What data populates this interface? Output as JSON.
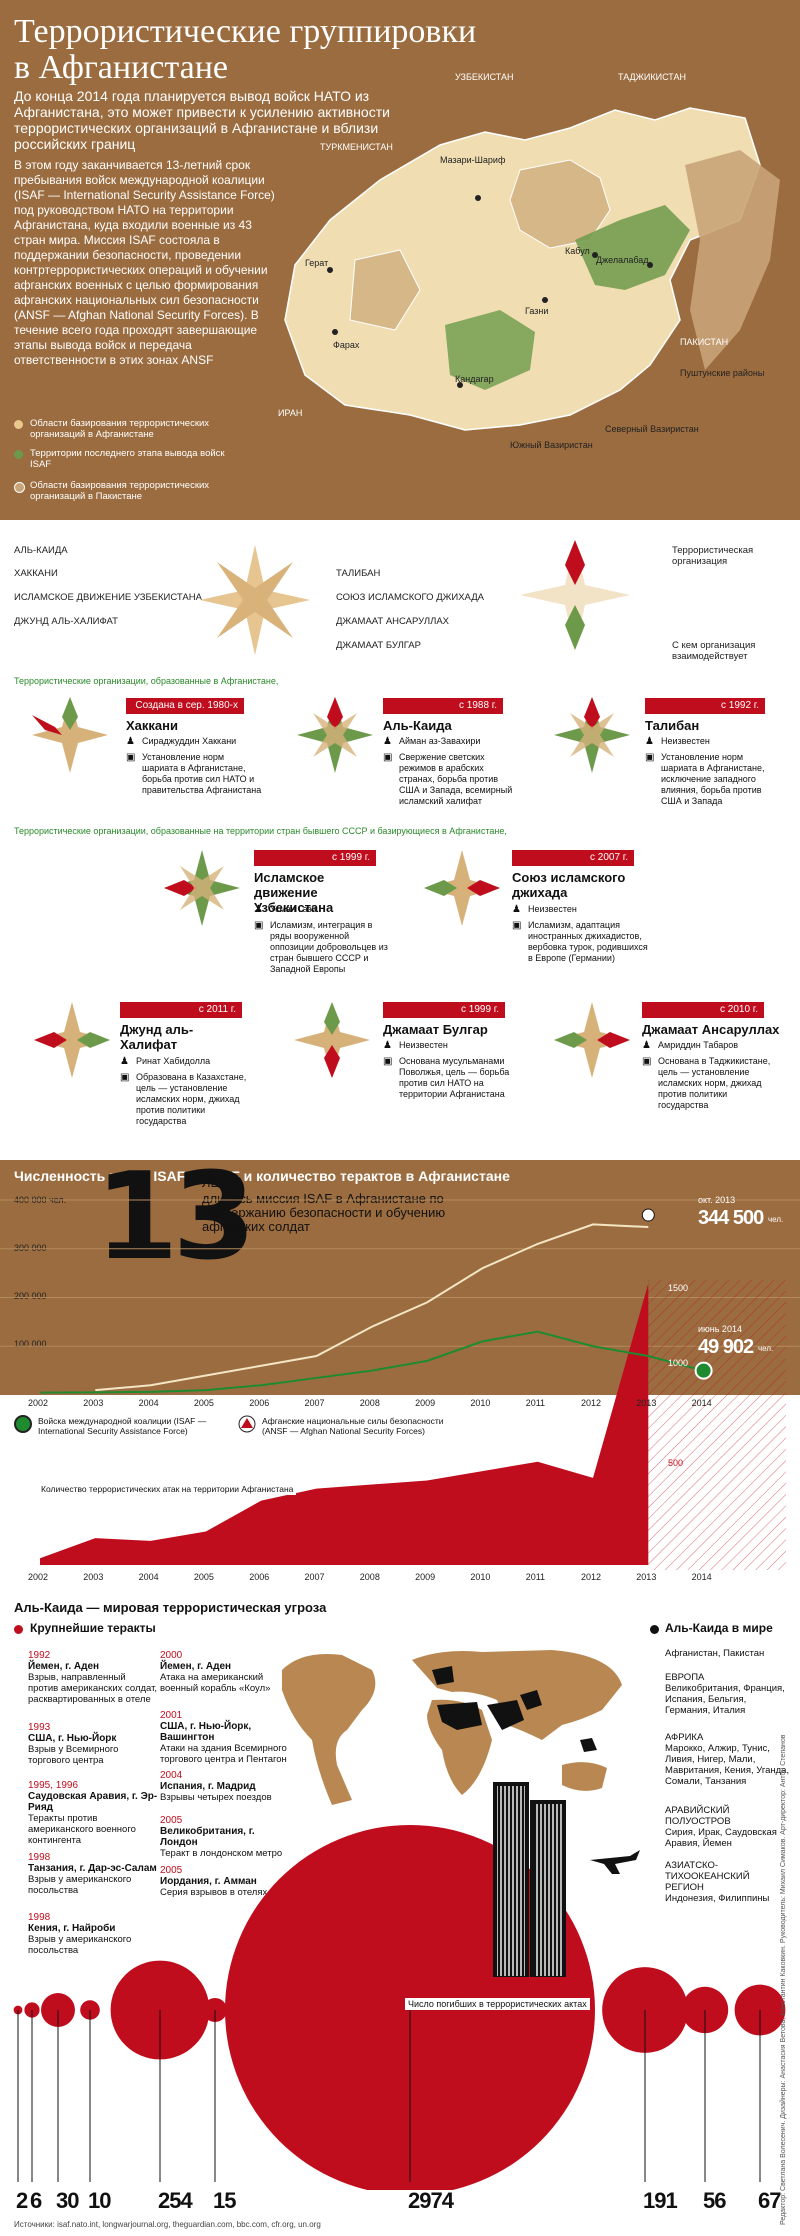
{
  "header": {
    "title": "Террористические группировки в Афганистане",
    "intro": "До конца 2014 года планируется вывод войск НАТО из Афганистана, это может привести к усилению активности террористических организаций в Афганистане и вблизи российских границ",
    "body": "В этом году заканчивается 13-летний срок пребывания войск международной коалиции (ISAF — International Security Assistance Force) под руководством НАТО на территории Афганистана, куда входили военные из 43 стран мира. Миссия ISAF состояла в поддержании безопасности, проведении контртеррористических операций и обучении афганских военных с целью формирования афганских национальных сил безопасности (ANSF — Afghan National Security Forces). В течение всего года проходят завершающие этапы вывода войск и передача ответственности в этих зонах ANSF"
  },
  "map_legend": [
    {
      "text": "Области базирования террористических организаций в Афганистане",
      "color": "#e8c98c"
    },
    {
      "text": "Территории последнего этапа вывода войск ISAF",
      "color": "#6d9a4a"
    },
    {
      "text": "Области базирования террористических организаций в Пакистане",
      "color": "#c9a478"
    }
  ],
  "map_labels": {
    "uzbekistan": "УЗБЕКИСТАН",
    "tajikistan": "ТАДЖИКИСТАН",
    "turkmenistan": "ТУРКМЕНИСТАН",
    "iran": "ИРАН",
    "pakistan": "ПАКИСТАН",
    "mazar": "Мазари-Шариф",
    "herat": "Герат",
    "kabul": "Кабул",
    "jalalabad": "Джелалабад",
    "ghazni": "Газни",
    "farah": "Фарах",
    "kandahar": "Кандагар",
    "pashtun": "Пуштунские районы",
    "n_waziristan": "Северный Вазиристан",
    "s_waziristan": "Южный Вазиристан"
  },
  "symbols": {
    "left": [
      "АЛЬ-КАИДА",
      "ХАККАНИ",
      "ИСЛАМСКОЕ ДВИЖЕНИЕ УЗБЕКИСТАНА",
      "ДЖУНД АЛЬ-ХАЛИФАТ"
    ],
    "right": [
      "ТАЛИБАН",
      "СОЮЗ ИСЛАМСКОГО ДЖИХАДА",
      "ДЖАМААТ АНСАРУЛЛАХ",
      "ДЖАМААТ БУЛГАР"
    ],
    "key_org": "Террористическая организация",
    "key_partner": "С кем организация взаимодействует"
  },
  "section1": "Террористические организации, образованные в Афганистане,",
  "section2": "Террористические организации, образованные на территории стран бывшего СССР и базирующиеся в Афганистане,",
  "orgs": [
    {
      "badge": "Создана в сер. 1980-х",
      "name": "Хаккани",
      "leader": "Сираджуддин Хаккани",
      "goal": "Установление норм шариата в Афганистане, борьба против сил НАТО и правительства Афганистана"
    },
    {
      "badge": "с 1988 г.",
      "name": "Аль-Каида",
      "leader": "Айман аз-Завахири",
      "goal": "Свержение светских режимов в арабских странах, борьба против США и Запада, всемирный исламский халифат"
    },
    {
      "badge": "с 1992 г.",
      "name": "Талибан",
      "leader": "Неизвестен",
      "goal": "Установление норм шариата в Афганистане, исключение западного влияния, борьба против США и Запада"
    },
    {
      "badge": "с 1999 г.",
      "name": "Исламское движение Узбекистана",
      "leader": "Усман Гази",
      "goal": "Исламизм, интеграция в ряды вооруженной оппозиции добровольцев из стран бывшего СССР и Западной Европы"
    },
    {
      "badge": "с 2007 г.",
      "name": "Союз исламского джихада",
      "leader": "Неизвестен",
      "goal": "Исламизм, адаптация иностранных джихадистов, вербовка турок, родившихся в Европе (Германии)"
    },
    {
      "badge": "с 2011 г.",
      "name": "Джунд аль-Халифат",
      "leader": "Ринат Хабидолла",
      "goal": "Образована в Казахстане, цель — установление исламских норм, джихад против политики государства"
    },
    {
      "badge": "с 1999 г.",
      "name": "Джамаат Булгар",
      "leader": "Неизвестен",
      "goal": "Основана мусульманами Поволжья, цель — борьба против сил НАТО на территории Афганистана"
    },
    {
      "badge": "с 2010 г.",
      "name": "Джамаат Ансаруллах",
      "leader": "Амриддин Табаров",
      "goal": "Основана в Таджикистане, цель — установление исламских норм, джихад против политики государства"
    }
  ],
  "troops": {
    "title": "Численность войск ISAF и ANSF и количество терактов в Афганистане",
    "big_number": "13",
    "big_text1": "ЛЕТ",
    "big_text2": "длилась миссия ISAF в Афганистане по поддержанию безопасности и обучению афганских солдат",
    "ansf_label": "окт. 2013",
    "ansf_value": "344 500",
    "unit1": "чел.",
    "isaf_label": "июнь 2014",
    "isaf_value": "49 902",
    "unit2": "чел.",
    "yticks": [
      "400 000 чел.",
      "300 000",
      "200 000",
      "100 000"
    ],
    "legend_isaf": "Войска международной коалиции (ISAF — International Security Assistance Force)",
    "legend_ansf": "Афганские национальные силы безопасности (ANSF — Afghan National Security Forces)",
    "attacks_label": "Количество террористических атак на территории Афганистана",
    "attack_ticks": [
      "1500",
      "1000",
      "500"
    ]
  },
  "chart_data": [
    {
      "type": "line",
      "x": [
        "2002",
        "2003",
        "2004",
        "2005",
        "2006",
        "2007",
        "2008",
        "2009",
        "2010",
        "2011",
        "2012",
        "2013",
        "2014"
      ],
      "series": [
        {
          "name": "ANSF",
          "values": [
            null,
            10000,
            20000,
            40000,
            60000,
            80000,
            140000,
            190000,
            260000,
            310000,
            350000,
            344500,
            null
          ]
        },
        {
          "name": "ISAF",
          "values": [
            5000,
            5500,
            6500,
            10000,
            20000,
            35000,
            50000,
            70000,
            110000,
            130000,
            100000,
            80000,
            49902
          ]
        }
      ],
      "ylim": [
        0,
        400000
      ]
    },
    {
      "type": "area",
      "x": [
        "2002",
        "2003",
        "2004",
        "2005",
        "2006",
        "2007",
        "2008",
        "2009",
        "2010",
        "2011",
        "2012",
        "2013"
      ],
      "series": [
        {
          "name": "Количество террористических атак на территории Афганистана",
          "values": [
            50,
            200,
            180,
            250,
            480,
            570,
            600,
            630,
            700,
            770,
            650,
            2100
          ]
        }
      ],
      "ylim": [
        0,
        2200
      ]
    }
  ],
  "years": [
    "2002",
    "2003",
    "2004",
    "2005",
    "2006",
    "2007",
    "2008",
    "2009",
    "2010",
    "2011",
    "2012",
    "2013",
    "2014"
  ],
  "alqaeda": {
    "title": "Аль-Каида — мировая террористическая угроза",
    "attacks_title": "Крупнейшие теракты",
    "world_title": "Аль-Каида в мире",
    "attacks": [
      {
        "year": "1992",
        "place": "Йемен, г. Аден",
        "desc": "Взрыв, направленный против американских солдат, расквартированных в отеле",
        "killed": "2"
      },
      {
        "year": "1993",
        "place": "США, г. Нью-Йорк",
        "desc": "Взрыв у Всемирного торгового центра",
        "killed": "6"
      },
      {
        "year": "1995, 1996",
        "place": "Саудовская Аравия, г. Эр-Рияд",
        "desc": "Теракты против американского военного контингента",
        "killed": "30"
      },
      {
        "year": "1998",
        "place": "Танзания, г. Дар-эс-Салам",
        "desc": "Взрыв у американского посольства",
        "killed": "10"
      },
      {
        "year": "1998",
        "place": "Кения, г. Найроби",
        "desc": "Взрыв у американского посольства",
        "killed": "254"
      },
      {
        "year": "2000",
        "place": "Йемен, г. Аден",
        "desc": "Атака на американский военный корабль «Коул»",
        "killed": "15"
      },
      {
        "year": "2001",
        "place": "США, г. Нью-Йорк, Вашингтон",
        "desc": "Атаки на здания Всемирного торгового центра и Пентагон",
        "killed": "2974"
      },
      {
        "year": "2004",
        "place": "Испания, г. Мадрид",
        "desc": "Взрывы четырех поездов",
        "killed": "191"
      },
      {
        "year": "2005",
        "place": "Великобритания, г. Лондон",
        "desc": "Теракт в лондонском метро",
        "killed": "56"
      },
      {
        "year": "2005",
        "place": "Иордания, г. Амман",
        "desc": "Серия взрывов в отелях",
        "killed": "67"
      }
    ],
    "regions": [
      {
        "h": "",
        "t": "Афганистан, Пакистан"
      },
      {
        "h": "ЕВРОПА",
        "t": "Великобритания, Франция, Испания, Бельгия, Германия, Италия"
      },
      {
        "h": "АФРИКА",
        "t": "Марокко, Алжир, Тунис, Ливия, Нигер, Мали, Мавритания, Кения, Уганда, Сомали, Танзания"
      },
      {
        "h": "АРАВИЙСКИЙ ПОЛУОСТРОВ",
        "t": "Сирия, Ирак, Саудовская Аравия, Йемен"
      },
      {
        "h": "АЗИАТСКО-ТИХООКЕАНСКИЙ РЕГИОН",
        "t": "Индонезия, Филиппины"
      }
    ],
    "killed_label": "Число погибших в террористических актах"
  },
  "footer": {
    "sources": "Источники: isaf.nato.int, longwarjournal.org, theguardian.com, bbc.com, cfr.org, un.org",
    "credits": "Редактор: Светлана Волесенич. Дизайнеры: Анастасия Ветова, Константин Каковкин. Руководитель: Михаил Симаков. Арт-директор: Антон Степанов"
  },
  "colors": {
    "brown": "#9b6c3f",
    "red": "#c00d1e",
    "green": "#6d9a4a",
    "sand": "#e8c98c"
  }
}
